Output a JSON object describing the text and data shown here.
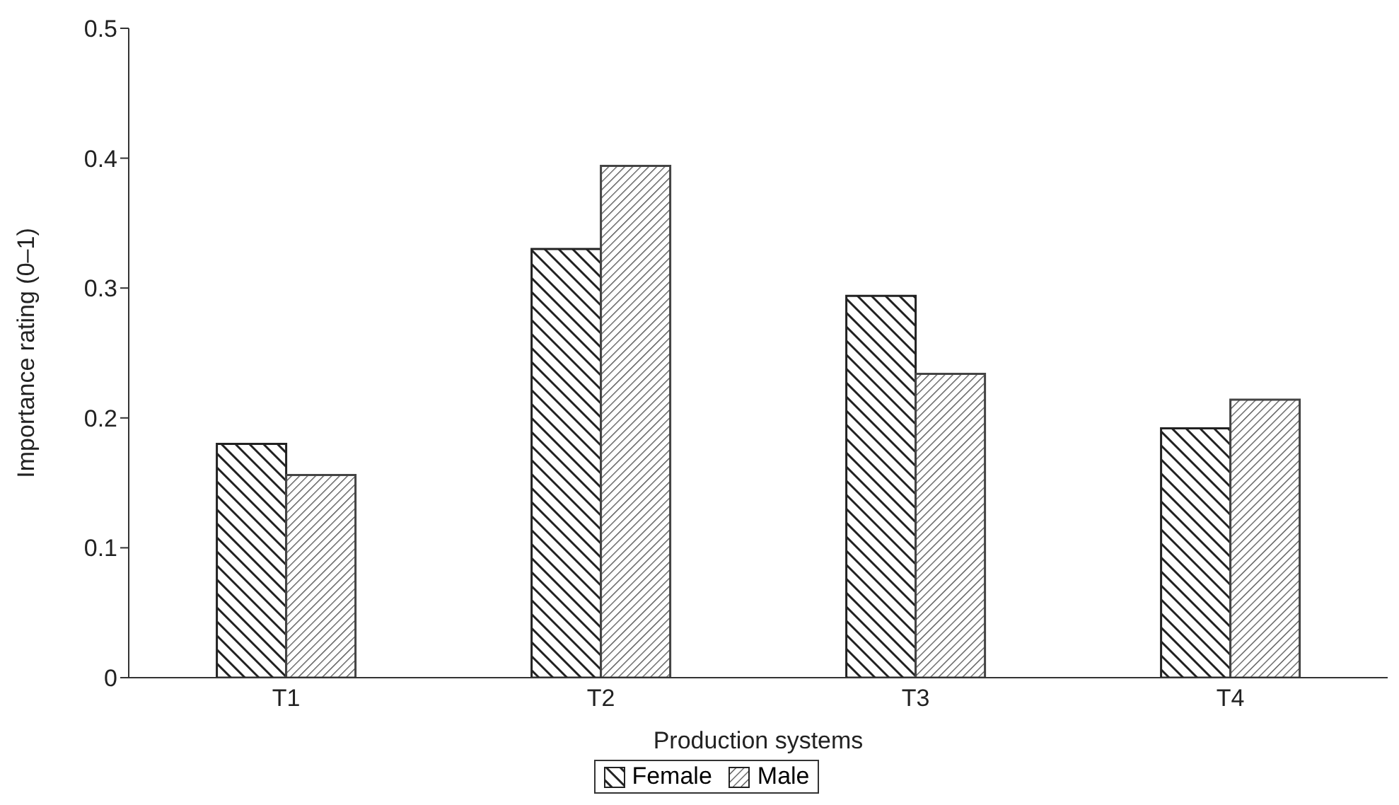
{
  "chart_data": {
    "type": "bar",
    "xlabel": "Production systems",
    "ylabel": "Importance rating (0–1)",
    "categories": [
      "T1",
      "T2",
      "T3",
      "T4"
    ],
    "series": [
      {
        "name": "Female",
        "color": "#222222",
        "values": [
          0.18,
          0.33,
          0.294,
          0.192
        ]
      },
      {
        "name": "Male",
        "color": "#444444",
        "values": [
          0.156,
          0.394,
          0.234,
          0.214
        ]
      }
    ],
    "ylim": [
      0,
      0.5
    ],
    "yticks": [
      {
        "value": 0,
        "label": "0"
      },
      0.1,
      0.2,
      0.3,
      0.4,
      0.5
    ],
    "grid": false,
    "legend": "bottom"
  }
}
